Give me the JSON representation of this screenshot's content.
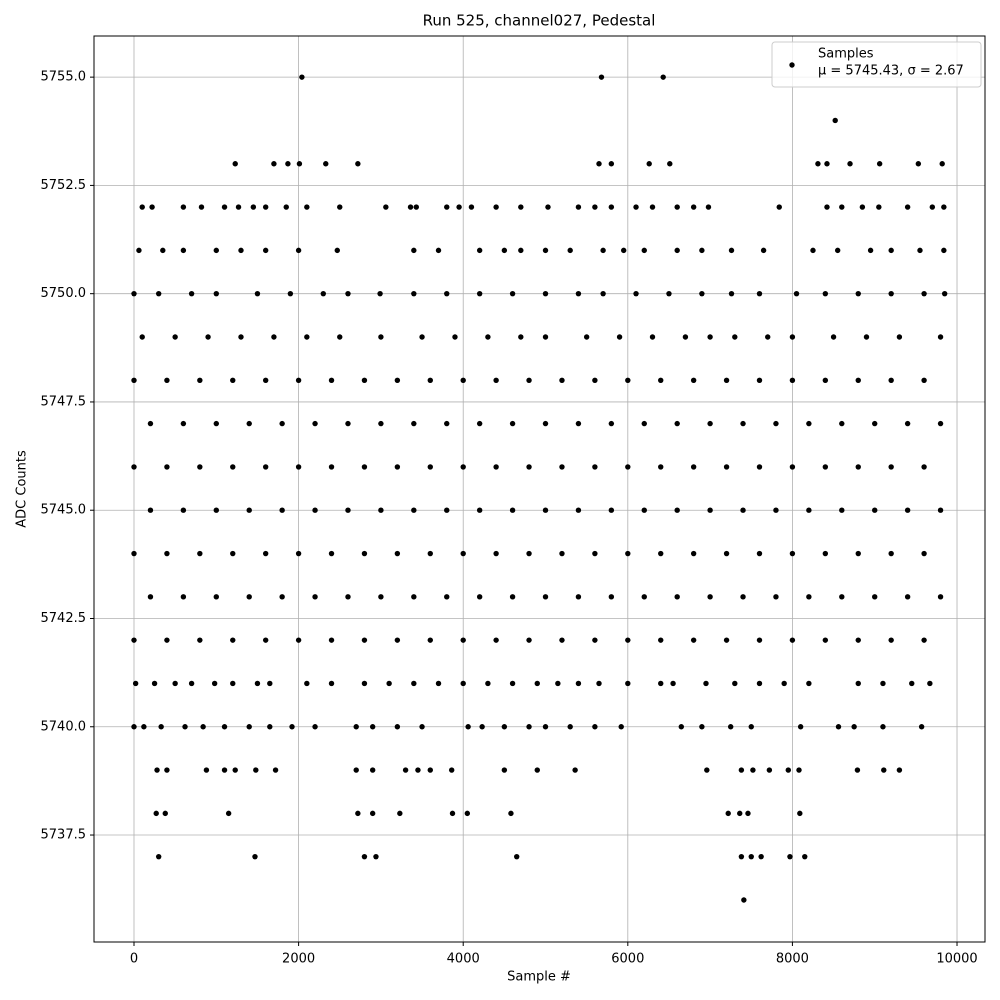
{
  "chart_data": {
    "type": "scatter",
    "title": "Run 525, channel027, Pedestal",
    "x_label": "Sample #",
    "y_label": "ADC Counts",
    "legend_stats": "μ = 5745.43, σ = 2.67",
    "legend_loc": "upper right",
    "grid": true,
    "xlim": [
      -486,
      10340
    ],
    "ylim": [
      5735.03,
      5755.95
    ],
    "xticks": [
      0,
      2000,
      4000,
      6000,
      8000,
      10000
    ],
    "yticks": [
      {
        "value": 5737.5,
        "label": "5737.5"
      },
      {
        "value": 5740,
        "label": "5740.0"
      },
      {
        "value": 5742.5,
        "label": "5742.5"
      },
      {
        "value": 5745,
        "label": "5745.0"
      },
      {
        "value": 5747.5,
        "label": "5747.5"
      },
      {
        "value": 5750,
        "label": "5750.0"
      },
      {
        "value": 5752.5,
        "label": "5752.5"
      },
      {
        "value": 5755,
        "label": "5755.0"
      }
    ],
    "x": [
      2040,
      5680,
      6430,
      8520,
      1230,
      1700,
      1870,
      2010,
      2330,
      2720,
      5650,
      5800,
      6260,
      6510,
      8310,
      8420,
      8700,
      9060,
      9530,
      9820,
      100,
      220,
      600,
      820,
      1100,
      1270,
      1450,
      1600,
      1850,
      2100,
      2500,
      3060,
      3360,
      3430,
      3800,
      3950,
      4100,
      4400,
      4700,
      5030,
      5400,
      5600,
      5800,
      6100,
      6300,
      6600,
      6800,
      6980,
      7840,
      8420,
      8600,
      8850,
      9050,
      9400,
      9700,
      9840,
      60,
      350,
      600,
      1000,
      1300,
      1600,
      2000,
      2470,
      3400,
      3700,
      4200,
      4500,
      4700,
      5000,
      5300,
      5700,
      5950,
      6200,
      6600,
      6900,
      7260,
      7650,
      8250,
      8550,
      8950,
      9200,
      9550,
      9840,
      0,
      300,
      700,
      1000,
      1500,
      1900,
      2300,
      2600,
      2990,
      3400,
      3800,
      4200,
      4600,
      5000,
      5400,
      5700,
      6100,
      6500,
      6900,
      7260,
      7600,
      8050,
      8400,
      8800,
      9200,
      9600,
      9850,
      100,
      500,
      900,
      1300,
      1700,
      2100,
      2500,
      3000,
      3500,
      3900,
      4300,
      4700,
      5000,
      5500,
      5900,
      6300,
      6700,
      7000,
      7300,
      7700,
      8000,
      8500,
      8900,
      9300,
      9800,
      0,
      400,
      800,
      1200,
      1600,
      2000,
      2400,
      2800,
      3200,
      3600,
      4000,
      4400,
      4800,
      5200,
      5600,
      6000,
      6400,
      6800,
      7200,
      7600,
      8000,
      8400,
      8800,
      9200,
      9600,
      200,
      600,
      1000,
      1400,
      1800,
      2200,
      2600,
      3000,
      3400,
      3800,
      4200,
      4600,
      5000,
      5400,
      5800,
      6200,
      6600,
      7000,
      7400,
      7800,
      8200,
      8600,
      9000,
      9400,
      9800,
      0,
      400,
      800,
      1200,
      1600,
      2000,
      2400,
      2800,
      3200,
      3600,
      4000,
      4400,
      4800,
      5200,
      5600,
      6000,
      6400,
      6800,
      7200,
      7600,
      8000,
      8400,
      8800,
      9200,
      9600,
      200,
      600,
      1000,
      1400,
      1800,
      2200,
      2600,
      3000,
      3400,
      3800,
      4200,
      4600,
      5000,
      5400,
      5800,
      6200,
      6600,
      7000,
      7400,
      7800,
      8200,
      8600,
      9000,
      9400,
      9800,
      0,
      400,
      800,
      1200,
      1600,
      2000,
      2400,
      2800,
      3200,
      3600,
      4000,
      4400,
      4800,
      5200,
      5600,
      6000,
      6400,
      6800,
      7200,
      7600,
      8000,
      8400,
      8800,
      9200,
      9600,
      200,
      600,
      1000,
      1400,
      1800,
      2200,
      2600,
      3000,
      3400,
      3800,
      4200,
      4600,
      5000,
      5400,
      5800,
      6200,
      6600,
      7000,
      7400,
      7800,
      8200,
      8600,
      9000,
      9400,
      9800,
      0,
      400,
      800,
      1200,
      1600,
      2000,
      2400,
      2800,
      3200,
      3600,
      4000,
      4400,
      4800,
      5200,
      5600,
      6000,
      6400,
      6800,
      7200,
      7600,
      8000,
      8400,
      8800,
      9200,
      9600,
      20,
      250,
      500,
      700,
      980,
      1200,
      1500,
      1650,
      2100,
      2400,
      2800,
      3100,
      3400,
      3700,
      4000,
      4300,
      4600,
      4900,
      5150,
      5400,
      5650,
      6000,
      6400,
      6550,
      6950,
      7300,
      7600,
      7900,
      8200,
      8800,
      9100,
      9450,
      9670,
      0,
      120,
      330,
      620,
      840,
      1100,
      1400,
      1650,
      1920,
      2200,
      2700,
      2900,
      3200,
      3500,
      4060,
      4230,
      4500,
      4800,
      5000,
      5300,
      5600,
      5920,
      6650,
      6900,
      7250,
      7500,
      8100,
      8560,
      8750,
      9100,
      9570,
      280,
      400,
      880,
      1100,
      1230,
      1480,
      1720,
      2700,
      2900,
      3300,
      3450,
      3600,
      3860,
      4500,
      4900,
      5360,
      6960,
      7380,
      7520,
      7720,
      7950,
      8080,
      8790,
      9110,
      9300,
      270,
      380,
      1150,
      2720,
      2900,
      3230,
      3870,
      4050,
      4580,
      7220,
      7360,
      7460,
      8090,
      300,
      1470,
      2800,
      2940,
      4650,
      7380,
      7500,
      7620,
      7970,
      8150,
      7410
    ],
    "series": [
      {
        "name": "Samples",
        "color": "#000000",
        "values": [
          5755,
          5755,
          5755,
          5754,
          5753,
          5753,
          5753,
          5753,
          5753,
          5753,
          5753,
          5753,
          5753,
          5753,
          5753,
          5753,
          5753,
          5753,
          5753,
          5753,
          5752,
          5752,
          5752,
          5752,
          5752,
          5752,
          5752,
          5752,
          5752,
          5752,
          5752,
          5752,
          5752,
          5752,
          5752,
          5752,
          5752,
          5752,
          5752,
          5752,
          5752,
          5752,
          5752,
          5752,
          5752,
          5752,
          5752,
          5752,
          5752,
          5752,
          5752,
          5752,
          5752,
          5752,
          5752,
          5752,
          5751,
          5751,
          5751,
          5751,
          5751,
          5751,
          5751,
          5751,
          5751,
          5751,
          5751,
          5751,
          5751,
          5751,
          5751,
          5751,
          5751,
          5751,
          5751,
          5751,
          5751,
          5751,
          5751,
          5751,
          5751,
          5751,
          5751,
          5751,
          5750,
          5750,
          5750,
          5750,
          5750,
          5750,
          5750,
          5750,
          5750,
          5750,
          5750,
          5750,
          5750,
          5750,
          5750,
          5750,
          5750,
          5750,
          5750,
          5750,
          5750,
          5750,
          5750,
          5750,
          5750,
          5750,
          5750,
          5749,
          5749,
          5749,
          5749,
          5749,
          5749,
          5749,
          5749,
          5749,
          5749,
          5749,
          5749,
          5749,
          5749,
          5749,
          5749,
          5749,
          5749,
          5749,
          5749,
          5749,
          5749,
          5749,
          5749,
          5749,
          5748,
          5748,
          5748,
          5748,
          5748,
          5748,
          5748,
          5748,
          5748,
          5748,
          5748,
          5748,
          5748,
          5748,
          5748,
          5748,
          5748,
          5748,
          5748,
          5748,
          5748,
          5748,
          5748,
          5748,
          5748,
          5747,
          5747,
          5747,
          5747,
          5747,
          5747,
          5747,
          5747,
          5747,
          5747,
          5747,
          5747,
          5747,
          5747,
          5747,
          5747,
          5747,
          5747,
          5747,
          5747,
          5747,
          5747,
          5747,
          5747,
          5747,
          5746,
          5746,
          5746,
          5746,
          5746,
          5746,
          5746,
          5746,
          5746,
          5746,
          5746,
          5746,
          5746,
          5746,
          5746,
          5746,
          5746,
          5746,
          5746,
          5746,
          5746,
          5746,
          5746,
          5746,
          5746,
          5745,
          5745,
          5745,
          5745,
          5745,
          5745,
          5745,
          5745,
          5745,
          5745,
          5745,
          5745,
          5745,
          5745,
          5745,
          5745,
          5745,
          5745,
          5745,
          5745,
          5745,
          5745,
          5745,
          5745,
          5745,
          5744,
          5744,
          5744,
          5744,
          5744,
          5744,
          5744,
          5744,
          5744,
          5744,
          5744,
          5744,
          5744,
          5744,
          5744,
          5744,
          5744,
          5744,
          5744,
          5744,
          5744,
          5744,
          5744,
          5744,
          5744,
          5743,
          5743,
          5743,
          5743,
          5743,
          5743,
          5743,
          5743,
          5743,
          5743,
          5743,
          5743,
          5743,
          5743,
          5743,
          5743,
          5743,
          5743,
          5743,
          5743,
          5743,
          5743,
          5743,
          5743,
          5743,
          5742,
          5742,
          5742,
          5742,
          5742,
          5742,
          5742,
          5742,
          5742,
          5742,
          5742,
          5742,
          5742,
          5742,
          5742,
          5742,
          5742,
          5742,
          5742,
          5742,
          5742,
          5742,
          5742,
          5742,
          5742,
          5741,
          5741,
          5741,
          5741,
          5741,
          5741,
          5741,
          5741,
          5741,
          5741,
          5741,
          5741,
          5741,
          5741,
          5741,
          5741,
          5741,
          5741,
          5741,
          5741,
          5741,
          5741,
          5741,
          5741,
          5741,
          5741,
          5741,
          5741,
          5741,
          5741,
          5741,
          5741,
          5741,
          5740,
          5740,
          5740,
          5740,
          5740,
          5740,
          5740,
          5740,
          5740,
          5740,
          5740,
          5740,
          5740,
          5740,
          5740,
          5740,
          5740,
          5740,
          5740,
          5740,
          5740,
          5740,
          5740,
          5740,
          5740,
          5740,
          5740,
          5740,
          5740,
          5740,
          5740,
          5739,
          5739,
          5739,
          5739,
          5739,
          5739,
          5739,
          5739,
          5739,
          5739,
          5739,
          5739,
          5739,
          5739,
          5739,
          5739,
          5739,
          5739,
          5739,
          5739,
          5739,
          5739,
          5739,
          5739,
          5739,
          5738,
          5738,
          5738,
          5738,
          5738,
          5738,
          5738,
          5738,
          5738,
          5738,
          5738,
          5738,
          5738,
          5737,
          5737,
          5737,
          5737,
          5737,
          5737,
          5737,
          5737,
          5737,
          5737,
          5736
        ]
      }
    ]
  }
}
